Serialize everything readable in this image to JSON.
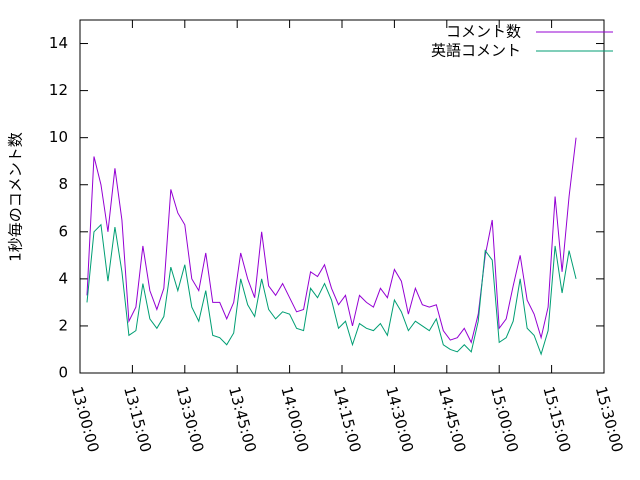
{
  "chart_data": {
    "type": "line",
    "y_label": "1秒毎のコメント数",
    "x": [
      "13:02:00",
      "13:04:00",
      "13:06:00",
      "13:08:00",
      "13:10:00",
      "13:12:00",
      "13:14:00",
      "13:16:00",
      "13:18:00",
      "13:20:00",
      "13:22:00",
      "13:24:00",
      "13:26:00",
      "13:28:00",
      "13:30:00",
      "13:32:00",
      "13:34:00",
      "13:36:00",
      "13:38:00",
      "13:40:00",
      "13:42:00",
      "13:44:00",
      "13:46:00",
      "13:48:00",
      "13:50:00",
      "13:52:00",
      "13:54:00",
      "13:56:00",
      "13:58:00",
      "14:00:00",
      "14:02:00",
      "14:04:00",
      "14:06:00",
      "14:08:00",
      "14:10:00",
      "14:12:00",
      "14:14:00",
      "14:16:00",
      "14:18:00",
      "14:20:00",
      "14:22:00",
      "14:24:00",
      "14:26:00",
      "14:28:00",
      "14:30:00",
      "14:32:00",
      "14:34:00",
      "14:36:00",
      "14:38:00",
      "14:40:00",
      "14:42:00",
      "14:44:00",
      "14:46:00",
      "14:48:00",
      "14:50:00",
      "14:52:00",
      "14:54:00",
      "14:56:00",
      "14:58:00",
      "15:00:00",
      "15:02:00",
      "15:04:00",
      "15:06:00",
      "15:08:00",
      "15:10:00",
      "15:12:00",
      "15:14:00",
      "15:16:00",
      "15:18:00",
      "15:20:00",
      "15:22:00"
    ],
    "series": [
      {
        "name": "コメント数",
        "color": "#9400d3",
        "values": [
          3.3,
          9.2,
          8,
          6,
          8.7,
          6.5,
          2.2,
          2.8,
          5.4,
          3.5,
          2.7,
          3.6,
          7.8,
          6.8,
          6.3,
          4,
          3.5,
          5.1,
          3,
          3,
          2.3,
          3,
          5.1,
          4,
          3.2,
          6,
          3.7,
          3.3,
          3.8,
          3.2,
          2.6,
          2.7,
          4.3,
          4.1,
          4.6,
          3.6,
          2.9,
          3.3,
          2,
          3.3,
          3,
          2.8,
          3.6,
          3.2,
          4.4,
          3.9,
          2.5,
          3.6,
          2.9,
          2.8,
          2.9,
          1.8,
          1.4,
          1.5,
          1.9,
          1.3,
          2.5,
          5,
          6.5,
          1.9,
          2.3,
          3.7,
          5,
          3.1,
          2.5,
          1.5,
          2.8,
          7.5,
          4.3,
          7.5,
          10
        ]
      },
      {
        "name": "英語コメント",
        "color": "#009e73",
        "values": [
          3.0,
          6.0,
          6.3,
          3.9,
          6.2,
          4.3,
          1.6,
          1.8,
          3.8,
          2.3,
          1.9,
          2.4,
          4.5,
          3.5,
          4.6,
          2.8,
          2.2,
          3.5,
          1.6,
          1.5,
          1.2,
          1.7,
          4,
          2.9,
          2.4,
          4,
          2.7,
          2.3,
          2.6,
          2.5,
          1.9,
          1.8,
          3.6,
          3.2,
          3.8,
          3.1,
          1.9,
          2.2,
          1.2,
          2.1,
          1.9,
          1.8,
          2.1,
          1.6,
          3.1,
          2.6,
          1.8,
          2.2,
          2,
          1.8,
          2.3,
          1.2,
          1.0,
          0.9,
          1.2,
          0.9,
          2.2,
          5.2,
          4.8,
          1.3,
          1.5,
          2.2,
          4,
          1.9,
          1.6,
          0.8,
          1.8,
          5.4,
          3.4,
          5.2,
          4
        ]
      }
    ],
    "xlim": [
      "13:00:00",
      "15:30:00"
    ],
    "xticks": [
      "13:00:00",
      "13:15:00",
      "13:30:00",
      "13:45:00",
      "14:00:00",
      "14:15:00",
      "14:30:00",
      "14:45:00",
      "15:00:00",
      "15:15:00",
      "15:30:00"
    ],
    "ylim": [
      0,
      15
    ],
    "yticks": [
      0,
      2,
      4,
      6,
      8,
      10,
      12,
      14
    ],
    "legend": "top-right"
  }
}
